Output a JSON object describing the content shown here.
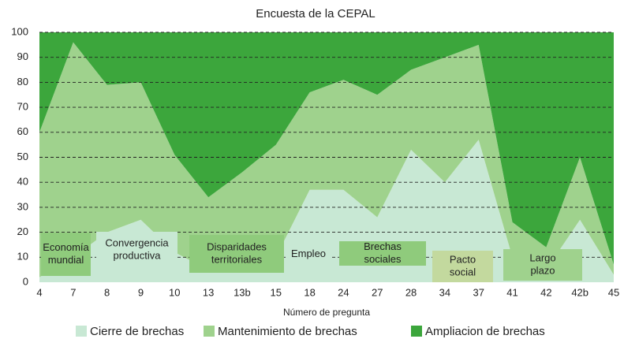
{
  "chart_data": {
    "type": "stacked_area",
    "title": "Encuesta de la CEPAL",
    "x_label": "Número de pregunta",
    "categories": [
      "4",
      "7",
      "8",
      "9",
      "10",
      "13",
      "13b",
      "15",
      "18",
      "24",
      "27",
      "28",
      "34",
      "37",
      "41",
      "42",
      "42b",
      "45"
    ],
    "series": [
      {
        "name": "Cierre de brechas",
        "color": "#c8e8d4",
        "values": [
          2,
          10,
          20,
          25,
          12,
          5,
          5,
          10,
          37,
          37,
          26,
          53,
          40,
          57,
          10,
          5,
          25,
          3
        ]
      },
      {
        "name": "Mantenimiento de brechas",
        "color": "#9fd28d",
        "values": [
          58,
          86,
          59,
          55,
          39,
          29,
          39,
          45,
          39,
          44,
          49,
          32,
          50,
          38,
          14,
          9,
          25,
          4
        ]
      },
      {
        "name": "Ampliacion de brechas",
        "color": "#3ca63c",
        "values": [
          40,
          4,
          21,
          20,
          49,
          66,
          56,
          45,
          24,
          19,
          25,
          15,
          10,
          5,
          76,
          86,
          50,
          93
        ]
      }
    ],
    "ylim": [
      0,
      100
    ],
    "yticks": [
      0,
      10,
      20,
      30,
      40,
      50,
      60,
      70,
      80,
      90,
      100
    ],
    "grid": true,
    "legend": "bottom",
    "annotations": [
      {
        "lines": [
          "Economía",
          "mundial"
        ],
        "color": "#8fcb7c"
      },
      {
        "lines": [
          "Convergencia",
          "productiva"
        ],
        "color": "#c8e8d4"
      },
      {
        "lines": [
          "Disparidades",
          "territoriales"
        ],
        "color": "#8fcb7c"
      },
      {
        "lines": [
          "Empleo"
        ],
        "color": "#c8e8d4"
      },
      {
        "lines": [
          "Brechas",
          "sociales"
        ],
        "color": "#8fcb7c"
      },
      {
        "lines": [
          "Pacto",
          "social"
        ],
        "color": "#c3d99e"
      },
      {
        "lines": [
          "Largo",
          "plazo"
        ],
        "color": "#9fd28d"
      }
    ]
  }
}
